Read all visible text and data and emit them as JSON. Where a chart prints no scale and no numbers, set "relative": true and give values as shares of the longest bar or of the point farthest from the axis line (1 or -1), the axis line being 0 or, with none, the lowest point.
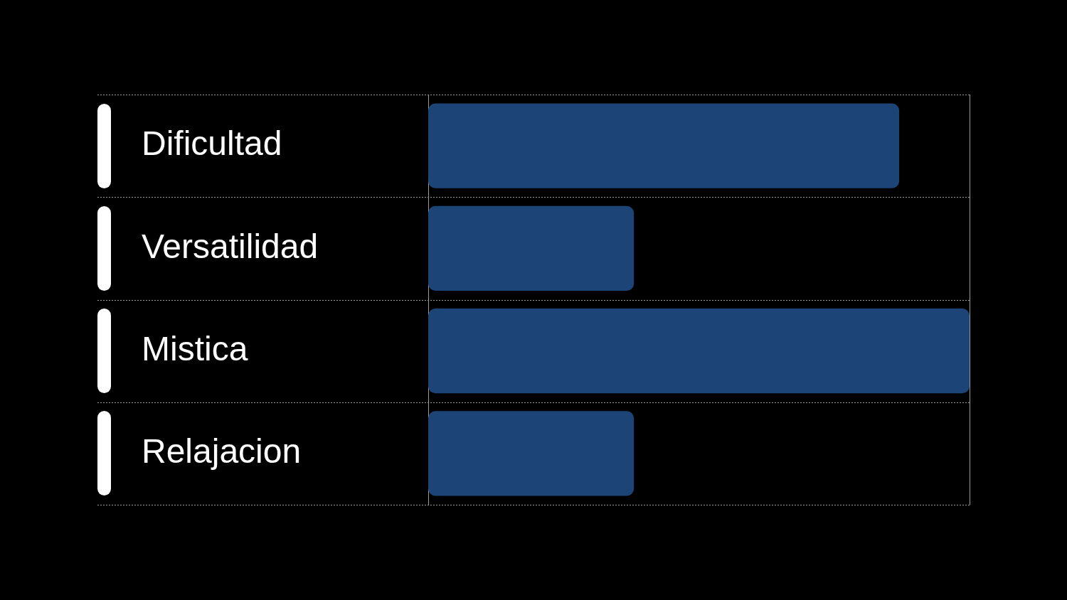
{
  "chart_data": {
    "type": "bar",
    "orientation": "horizontal",
    "categories": [
      "Dificultad",
      "Versatilidad",
      "Mistica",
      "Relajacion"
    ],
    "values": [
      0.87,
      0.38,
      1,
      0.38
    ],
    "color": "#1d4477",
    "relative": true,
    "grid": "y"
  }
}
